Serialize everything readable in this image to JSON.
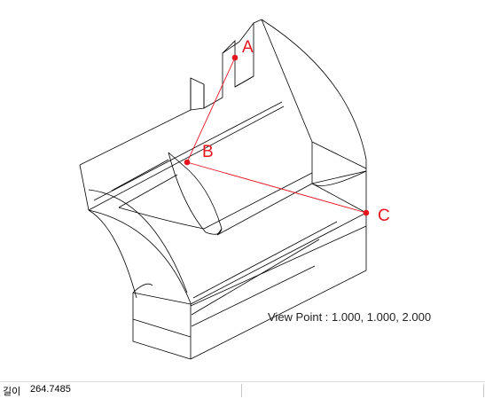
{
  "points": [
    {
      "name": "A",
      "label": "A"
    },
    {
      "name": "B",
      "label": "B"
    },
    {
      "name": "C",
      "label": "C"
    }
  ],
  "view_point": {
    "text": "View Point : 1.000, 1.000, 2.000"
  },
  "status_bar": {
    "label": "길이",
    "value": "264.7485"
  },
  "colors": {
    "measure": "#e8141d",
    "edges": "#000000",
    "background": "#ffffff"
  }
}
